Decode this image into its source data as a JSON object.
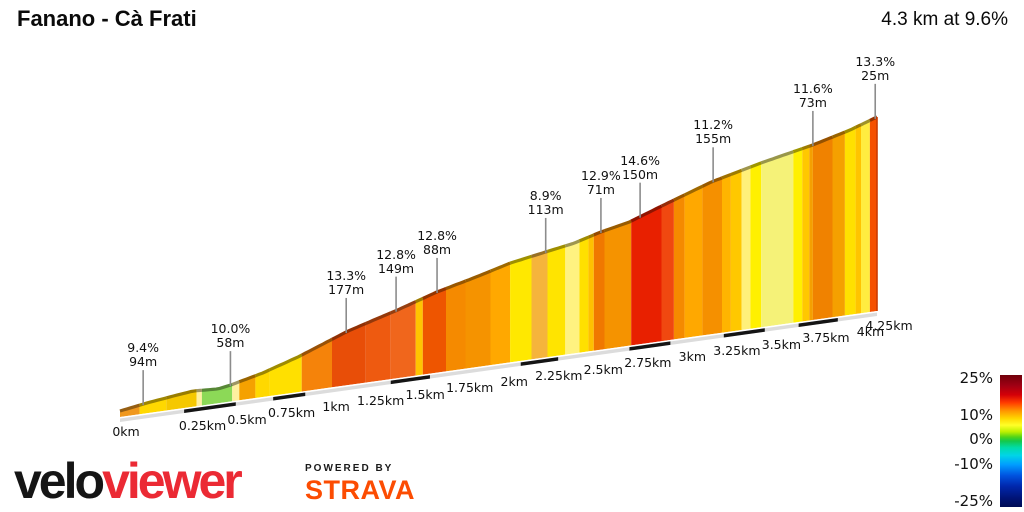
{
  "header": {
    "title": "Fanano - Cà Frati",
    "summary": "4.3 km at 9.6%"
  },
  "footer": {
    "logo_black": "velo",
    "logo_red": "viewer",
    "logo_red_color": "#EB2A34",
    "powered_by": "POWERED BY",
    "strava": "STRAVA",
    "strava_color": "#FC4C02"
  },
  "chart_data": {
    "type": "area",
    "title": "Fanano - Cà Frati",
    "subtitle": "4.3 km at 9.6%",
    "total_km": 4.25,
    "x_unit": "km",
    "grid": false,
    "legend_position": "bottom-right",
    "profile": [
      [
        0.0,
        0.0
      ],
      [
        0.15,
        0.027
      ],
      [
        0.3,
        0.051
      ],
      [
        0.41,
        0.068
      ],
      [
        0.55,
        0.075
      ],
      [
        0.62,
        0.088
      ],
      [
        0.8,
        0.129
      ],
      [
        1.0,
        0.184
      ],
      [
        1.28,
        0.272
      ],
      [
        1.56,
        0.344
      ],
      [
        1.78,
        0.405
      ],
      [
        2.0,
        0.456
      ],
      [
        2.19,
        0.503
      ],
      [
        2.39,
        0.541
      ],
      [
        2.55,
        0.571
      ],
      [
        2.7,
        0.609
      ],
      [
        2.86,
        0.643
      ],
      [
        3.04,
        0.697
      ],
      [
        3.32,
        0.779
      ],
      [
        3.6,
        0.844
      ],
      [
        3.89,
        0.905
      ],
      [
        4.1,
        0.956
      ],
      [
        4.25,
        1.0
      ]
    ],
    "segments": [
      {
        "from": 0.0,
        "to": 0.11,
        "color": "#F0981E"
      },
      {
        "from": 0.11,
        "to": 0.26,
        "color": "#FFD800"
      },
      {
        "from": 0.26,
        "to": 0.43,
        "color": "#F5C800"
      },
      {
        "from": 0.43,
        "to": 0.46,
        "color": "#FFF0A0"
      },
      {
        "from": 0.46,
        "to": 0.63,
        "color": "#8CD957"
      },
      {
        "from": 0.63,
        "to": 0.67,
        "color": "#FFF0A0"
      },
      {
        "from": 0.67,
        "to": 0.76,
        "color": "#F5A100"
      },
      {
        "from": 0.76,
        "to": 0.84,
        "color": "#FFD800"
      },
      {
        "from": 0.84,
        "to": 1.02,
        "color": "#FFE000"
      },
      {
        "from": 1.02,
        "to": 1.19,
        "color": "#F5830A"
      },
      {
        "from": 1.19,
        "to": 1.38,
        "color": "#E84E08"
      },
      {
        "from": 1.38,
        "to": 1.52,
        "color": "#EE5A10"
      },
      {
        "from": 1.52,
        "to": 1.66,
        "color": "#F0661C"
      },
      {
        "from": 1.66,
        "to": 1.7,
        "color": "#FFC400"
      },
      {
        "from": 1.7,
        "to": 1.83,
        "color": "#EE5500"
      },
      {
        "from": 1.83,
        "to": 1.94,
        "color": "#F58A00"
      },
      {
        "from": 1.94,
        "to": 2.08,
        "color": "#F59300"
      },
      {
        "from": 2.08,
        "to": 2.19,
        "color": "#FFA800"
      },
      {
        "from": 2.19,
        "to": 2.31,
        "color": "#FFE800"
      },
      {
        "from": 2.31,
        "to": 2.4,
        "color": "#F5B43C"
      },
      {
        "from": 2.4,
        "to": 2.5,
        "color": "#FFE400"
      },
      {
        "from": 2.5,
        "to": 2.58,
        "color": "#FFF280"
      },
      {
        "from": 2.58,
        "to": 2.63,
        "color": "#FFE000"
      },
      {
        "from": 2.63,
        "to": 2.66,
        "color": "#FFC000"
      },
      {
        "from": 2.66,
        "to": 2.72,
        "color": "#F07800"
      },
      {
        "from": 2.72,
        "to": 2.87,
        "color": "#F59300"
      },
      {
        "from": 2.87,
        "to": 3.04,
        "color": "#E82000"
      },
      {
        "from": 3.04,
        "to": 3.11,
        "color": "#F04810"
      },
      {
        "from": 3.11,
        "to": 3.17,
        "color": "#F58A00"
      },
      {
        "from": 3.17,
        "to": 3.27,
        "color": "#FFA800"
      },
      {
        "from": 3.27,
        "to": 3.38,
        "color": "#F59000"
      },
      {
        "from": 3.38,
        "to": 3.43,
        "color": "#FFB400"
      },
      {
        "from": 3.43,
        "to": 3.49,
        "color": "#FFC800"
      },
      {
        "from": 3.49,
        "to": 3.54,
        "color": "#FFF07A"
      },
      {
        "from": 3.54,
        "to": 3.6,
        "color": "#FFF000"
      },
      {
        "from": 3.6,
        "to": 3.78,
        "color": "#F5F278"
      },
      {
        "from": 3.78,
        "to": 3.83,
        "color": "#FFF000"
      },
      {
        "from": 3.83,
        "to": 3.87,
        "color": "#FFC800"
      },
      {
        "from": 3.87,
        "to": 3.89,
        "color": "#F5A000"
      },
      {
        "from": 3.89,
        "to": 4.0,
        "color": "#F08200"
      },
      {
        "from": 4.0,
        "to": 4.07,
        "color": "#F5A000"
      },
      {
        "from": 4.07,
        "to": 4.13,
        "color": "#FFE000"
      },
      {
        "from": 4.13,
        "to": 4.16,
        "color": "#FFC400"
      },
      {
        "from": 4.16,
        "to": 4.21,
        "color": "#FFEC40"
      },
      {
        "from": 4.21,
        "to": 4.25,
        "color": "#F55000"
      }
    ],
    "callouts": [
      {
        "km": 0.13,
        "gradient": "9.4%",
        "length": "94m"
      },
      {
        "km": 0.62,
        "gradient": "10.0%",
        "length": "58m"
      },
      {
        "km": 1.27,
        "gradient": "13.3%",
        "length": "177m"
      },
      {
        "km": 1.55,
        "gradient": "12.8%",
        "length": "149m"
      },
      {
        "km": 1.78,
        "gradient": "12.8%",
        "length": "88m"
      },
      {
        "km": 2.39,
        "gradient": "8.9%",
        "length": "113m"
      },
      {
        "km": 2.7,
        "gradient": "12.9%",
        "length": "71m"
      },
      {
        "km": 2.92,
        "gradient": "14.6%",
        "length": "150m"
      },
      {
        "km": 3.33,
        "gradient": "11.2%",
        "length": "155m"
      },
      {
        "km": 3.89,
        "gradient": "11.6%",
        "length": "73m"
      },
      {
        "km": 4.24,
        "gradient": "13.3%",
        "length": "25m"
      }
    ],
    "x_ticks": [
      {
        "km": 0.0,
        "label": "0km"
      },
      {
        "km": 0.25,
        "label": "0.25km"
      },
      {
        "km": 0.5,
        "label": "0.5km"
      },
      {
        "km": 0.75,
        "label": "0.75km"
      },
      {
        "km": 1.0,
        "label": "1km"
      },
      {
        "km": 1.25,
        "label": "1.25km"
      },
      {
        "km": 1.5,
        "label": "1.5km"
      },
      {
        "km": 1.75,
        "label": "1.75km"
      },
      {
        "km": 2.0,
        "label": "2km"
      },
      {
        "km": 2.25,
        "label": "2.25km"
      },
      {
        "km": 2.5,
        "label": "2.5km"
      },
      {
        "km": 2.75,
        "label": "2.75km"
      },
      {
        "km": 3.0,
        "label": "3km"
      },
      {
        "km": 3.25,
        "label": "3.25km"
      },
      {
        "km": 3.5,
        "label": "3.5km"
      },
      {
        "km": 3.75,
        "label": "3.75km"
      },
      {
        "km": 4.0,
        "label": "4km"
      },
      {
        "km": 4.25,
        "label": "4.25km"
      }
    ],
    "ruler_dark_segments": [
      [
        0.36,
        0.65
      ],
      [
        0.86,
        1.04
      ],
      [
        1.52,
        1.74
      ],
      [
        2.25,
        2.46
      ],
      [
        2.86,
        3.09
      ],
      [
        3.39,
        3.62
      ],
      [
        3.81,
        4.03
      ]
    ],
    "legend": {
      "ticks": [
        {
          "v": 25,
          "label": "25%"
        },
        {
          "v": 10,
          "label": "10%"
        },
        {
          "v": 0,
          "label": "0%"
        },
        {
          "v": -10,
          "label": "-10%"
        },
        {
          "v": -25,
          "label": "-25%"
        }
      ],
      "gradient_stops": [
        [
          0.0,
          "#70000A"
        ],
        [
          0.08,
          "#A00014"
        ],
        [
          0.15,
          "#D40008"
        ],
        [
          0.21,
          "#FF3C00"
        ],
        [
          0.27,
          "#FF9400"
        ],
        [
          0.33,
          "#FFD800"
        ],
        [
          0.38,
          "#FFFF28"
        ],
        [
          0.43,
          "#BEF000"
        ],
        [
          0.47,
          "#50D418"
        ],
        [
          0.5,
          "#14C84A"
        ],
        [
          0.55,
          "#00DCA8"
        ],
        [
          0.61,
          "#00D4E8"
        ],
        [
          0.68,
          "#009CFF"
        ],
        [
          0.76,
          "#0054E0"
        ],
        [
          0.84,
          "#0028AE"
        ],
        [
          0.93,
          "#001478"
        ],
        [
          1.0,
          "#000C54"
        ]
      ]
    }
  }
}
